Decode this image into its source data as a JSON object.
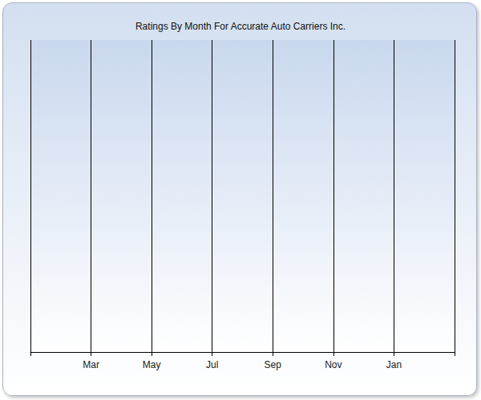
{
  "chart_data": {
    "type": "line",
    "title": "Ratings By Month For Accurate Auto Carriers Inc.",
    "categories": [
      null,
      "Mar",
      "May",
      "Jul",
      "Sep",
      "Nov",
      "Jan",
      null
    ],
    "values": [
      null,
      null,
      null,
      null,
      null,
      null,
      null,
      null
    ],
    "grid": true,
    "tick_labels": "x"
  }
}
